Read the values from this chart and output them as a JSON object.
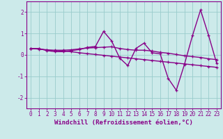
{
  "xlabel": "Windchill (Refroidissement éolien,°C)",
  "bg_color": "#cceaea",
  "line_color": "#880088",
  "grid_color": "#99cccc",
  "xlim": [
    -0.5,
    23.5
  ],
  "ylim": [
    -2.5,
    2.5
  ],
  "yticks": [
    -2,
    -1,
    0,
    1,
    2
  ],
  "xticks": [
    0,
    1,
    2,
    3,
    4,
    5,
    6,
    7,
    8,
    9,
    10,
    11,
    12,
    13,
    14,
    15,
    16,
    17,
    18,
    19,
    20,
    21,
    22,
    23
  ],
  "series1_x": [
    0,
    1,
    2,
    3,
    4,
    5,
    6,
    7,
    8,
    9,
    10,
    11,
    12,
    13,
    14,
    15,
    16,
    17,
    18,
    19,
    20,
    21,
    22,
    23
  ],
  "series1_y": [
    0.3,
    0.3,
    0.2,
    0.15,
    0.15,
    0.2,
    0.25,
    0.35,
    0.4,
    1.1,
    0.65,
    -0.15,
    -0.5,
    0.3,
    0.55,
    0.1,
    0.05,
    -1.1,
    -1.65,
    -0.45,
    0.9,
    2.1,
    0.9,
    -0.4
  ],
  "series2_x": [
    0,
    1,
    2,
    3,
    4,
    5,
    6,
    7,
    8,
    9,
    10,
    11,
    12,
    13,
    14,
    15,
    16,
    17,
    18,
    19,
    20,
    21,
    22,
    23
  ],
  "series2_y": [
    0.3,
    0.28,
    0.22,
    0.22,
    0.22,
    0.24,
    0.28,
    0.32,
    0.34,
    0.36,
    0.38,
    0.3,
    0.25,
    0.22,
    0.22,
    0.18,
    0.12,
    0.08,
    0.02,
    -0.04,
    -0.08,
    -0.12,
    -0.18,
    -0.22
  ],
  "series3_x": [
    0,
    1,
    2,
    3,
    4,
    5,
    6,
    7,
    8,
    9,
    10,
    11,
    12,
    13,
    14,
    15,
    16,
    17,
    18,
    19,
    20,
    21,
    22,
    23
  ],
  "series3_y": [
    0.3,
    0.27,
    0.24,
    0.2,
    0.18,
    0.15,
    0.1,
    0.06,
    0.02,
    -0.02,
    -0.06,
    -0.1,
    -0.14,
    -0.18,
    -0.22,
    -0.26,
    -0.3,
    -0.34,
    -0.38,
    -0.42,
    -0.46,
    -0.5,
    -0.54,
    -0.58
  ],
  "marker_size": 3.5,
  "linewidth": 1.0,
  "tick_fontsize": 5.5,
  "label_fontsize": 6.5
}
